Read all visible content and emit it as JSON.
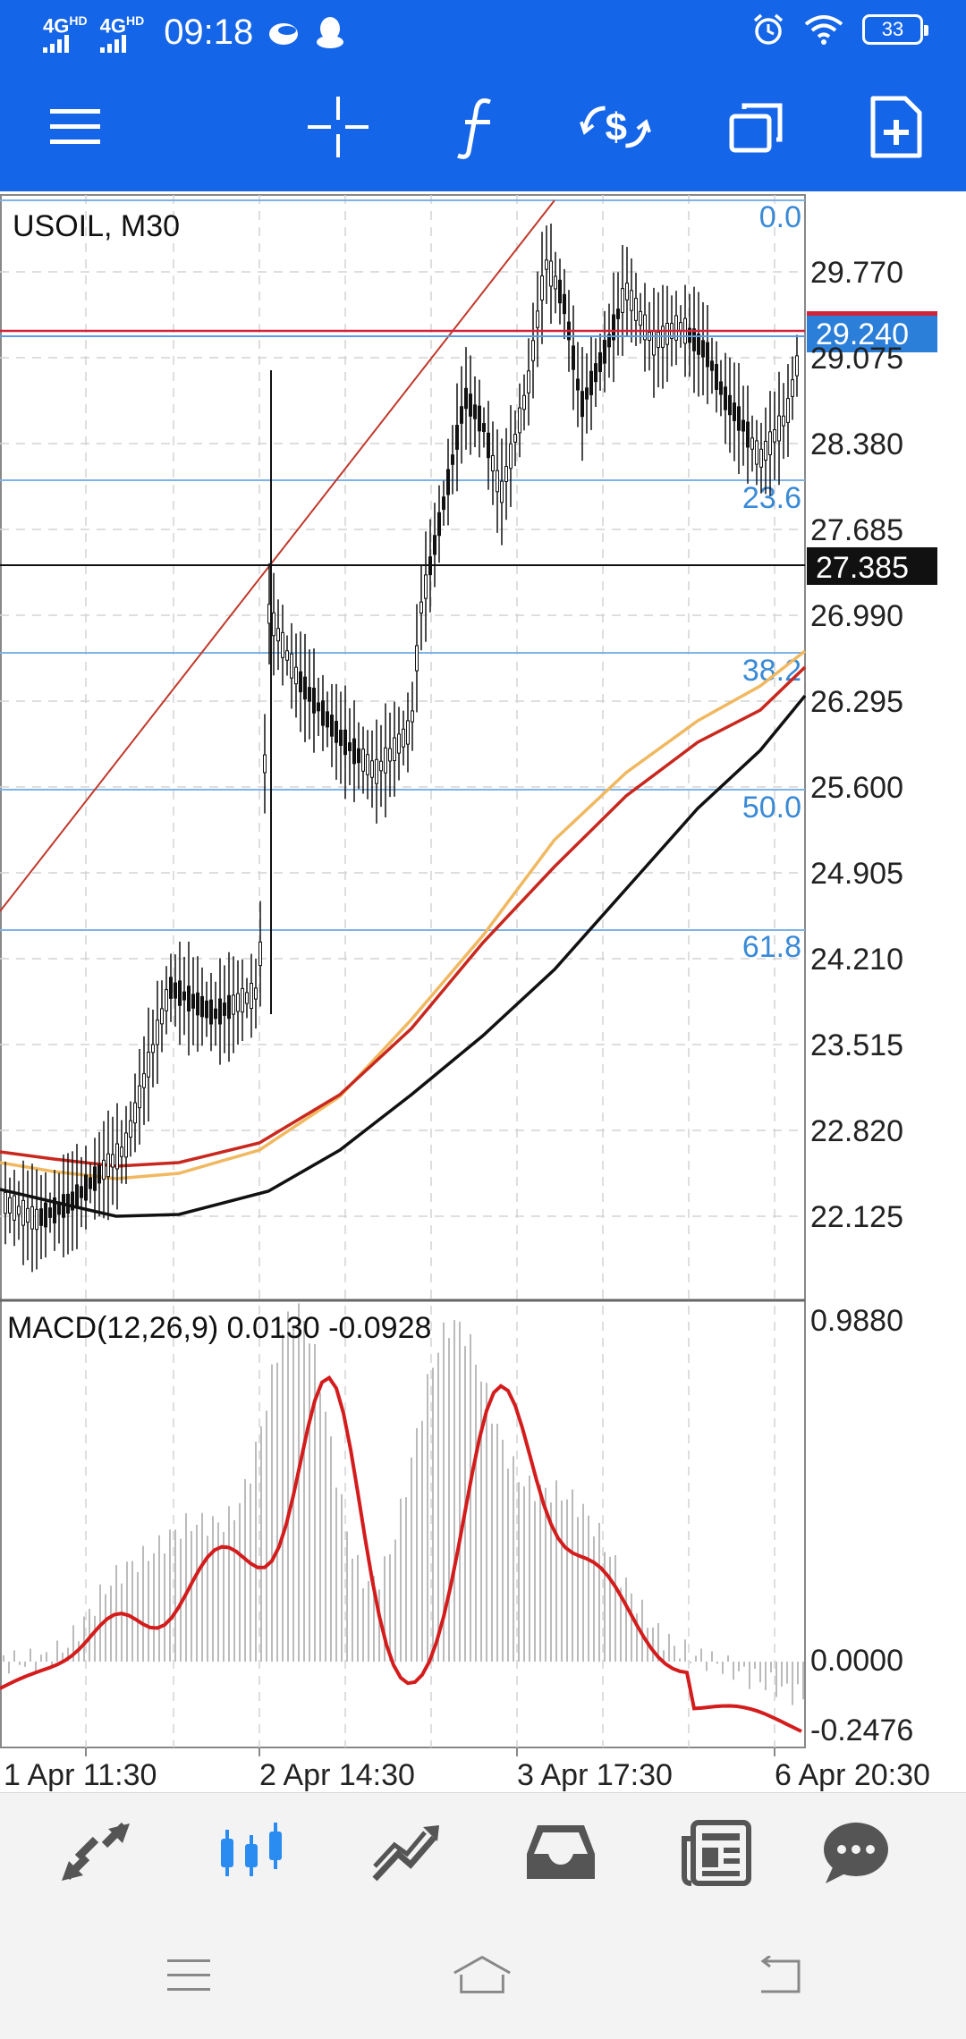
{
  "status_bar": {
    "network_1": "4G",
    "network_1_sup": "HD",
    "network_2": "4G",
    "network_2_sup": "HD",
    "time": "09:18",
    "battery": "33"
  },
  "toolbar": {
    "icons": [
      "menu-icon",
      "crosshair-icon",
      "indicators-icon",
      "trade-icon",
      "windows-icon",
      "new-order-icon"
    ]
  },
  "chart": {
    "symbol_label": "USOIL, M30",
    "price_labels": [
      "29.770",
      "29.075",
      "28.380",
      "27.685",
      "26.990",
      "26.295",
      "25.600",
      "24.905",
      "24.210",
      "23.515",
      "22.820",
      "22.125"
    ],
    "bid_price": "29.240",
    "crosshair_price": "27.385",
    "fib_levels": [
      "0.0",
      "23.6",
      "38.2",
      "50.0",
      "61.8"
    ],
    "macd_label": "MACD(12,26,9) 0.0130 -0.0928",
    "macd_axis": [
      "0.9880",
      "0.0000",
      "-0.2476"
    ],
    "time_labels": [
      "1 Apr 11:30",
      "2 Apr 14:30",
      "3 Apr 17:30",
      "6 Apr 20:30"
    ],
    "colors": {
      "accent": "#1565e8",
      "fib": "#7fb2e6",
      "fib_text": "#3a8ad6",
      "bid_line": "#d0243a",
      "ma_fast": "#f0b860",
      "ma_mid": "#c8281e",
      "ma_slow": "#111111",
      "macd_signal": "#d41c1c",
      "macd_hist": "#bbbbbb"
    }
  },
  "bottom_nav": {
    "items": [
      "quotes-icon",
      "chart-icon",
      "trade-icon",
      "history-icon",
      "news-icon",
      "chat-icon"
    ],
    "active": "chart-icon"
  },
  "system_nav": {
    "items": [
      "recent-apps-icon",
      "home-icon",
      "back-icon"
    ]
  }
}
